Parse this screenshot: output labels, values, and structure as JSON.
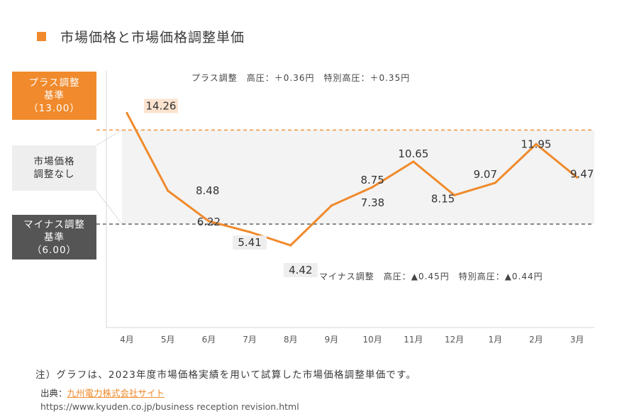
{
  "title": "市場価格と市場価格調整単価",
  "bands": {
    "plus_label": [
      "プラス調整",
      "基準",
      "（13.00）"
    ],
    "none_label": [
      "市場価格",
      "調整なし"
    ],
    "minus_label": [
      "マイナス調整",
      "基準",
      "（6.00）"
    ]
  },
  "annotations": {
    "max_note": "プラス調整　高圧：＋0.36円　特別高圧：＋0.35円",
    "min_note": "マイナス調整　高圧：▲0.45円　特別高圧：▲0.44円"
  },
  "footer": {
    "note": "注）グラフは、2023年度市場価格実績を用いて試算した市場価格調整単価です。",
    "source_label": "出典：",
    "source_link": "九州電力株式会社サイト",
    "url": "https://www.kyuden.co.jp/business reception revision.html"
  },
  "colors": {
    "accent": "#f08a2c",
    "dark": "#555555",
    "band": "#f3f3f3"
  },
  "chart_data": {
    "type": "line",
    "title": "市場価格と市場価格調整単価",
    "categories": [
      "4月",
      "5月",
      "6月",
      "7月",
      "8月",
      "9月",
      "10月",
      "11月",
      "12月",
      "1月",
      "2月",
      "3月"
    ],
    "series": [
      {
        "name": "市場価格",
        "values": [
          14.26,
          8.48,
          6.22,
          5.41,
          4.42,
          7.38,
          8.75,
          10.65,
          8.15,
          9.07,
          11.95,
          9.47
        ],
        "labels": [
          "14.26",
          "8.48",
          "6.22",
          "5.41",
          "4.42",
          "7.38",
          "8.75",
          "10.65",
          "8.15",
          "9.07",
          "11.95",
          "9.47"
        ]
      }
    ],
    "reference_lines": [
      {
        "name": "プラス調整基準",
        "value": 13.0
      },
      {
        "name": "マイナス調整基準",
        "value": 6.0
      }
    ],
    "xlabel": "",
    "ylabel": "",
    "ylim": [
      -1.7,
      17.4
    ]
  }
}
